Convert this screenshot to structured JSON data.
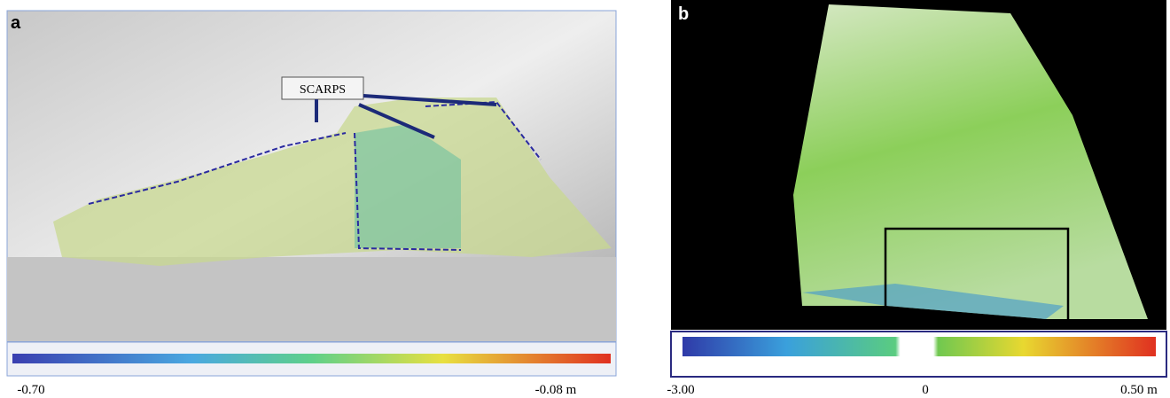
{
  "panels": [
    {
      "label": "a",
      "annotation": "SCARPS",
      "scale": {
        "min_label": "-0.70",
        "max_label": "-0.08 m"
      }
    },
    {
      "label": "b",
      "scale": {
        "min_label": "-3.00",
        "mid_label": "0",
        "max_label": "0.50 m"
      }
    }
  ]
}
